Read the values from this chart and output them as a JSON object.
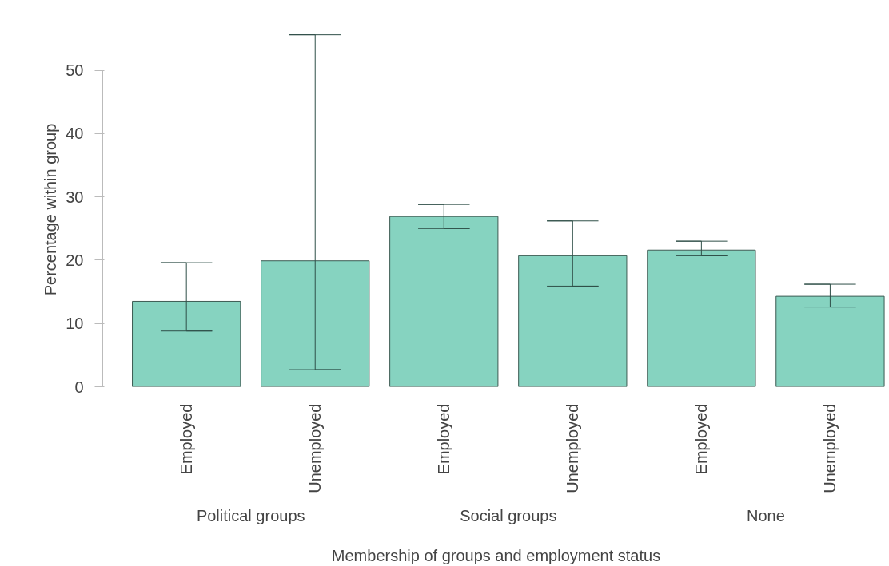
{
  "chart_data": {
    "type": "bar",
    "xlabel": "Membership of groups and employment status",
    "ylabel": "Percentage within group",
    "categories": [
      "Employed",
      "Unemployed",
      "Employed",
      "Unemployed",
      "Employed",
      "Unemployed"
    ],
    "values": [
      13.5,
      19.9,
      26.9,
      20.7,
      21.6,
      14.3
    ],
    "errors": [
      [
        8.8,
        19.6
      ],
      [
        2.7,
        55.6
      ],
      [
        25.0,
        28.8
      ],
      [
        15.9,
        26.2
      ],
      [
        20.7,
        23.0
      ],
      [
        12.6,
        16.2
      ]
    ],
    "color": "#86d3c0",
    "ylim": [
      0,
      56
    ],
    "yticks": [
      0,
      10,
      20,
      30,
      40,
      50
    ],
    "grid": false,
    "annotations": [
      "Political groups",
      "Social groups",
      "None"
    ]
  }
}
